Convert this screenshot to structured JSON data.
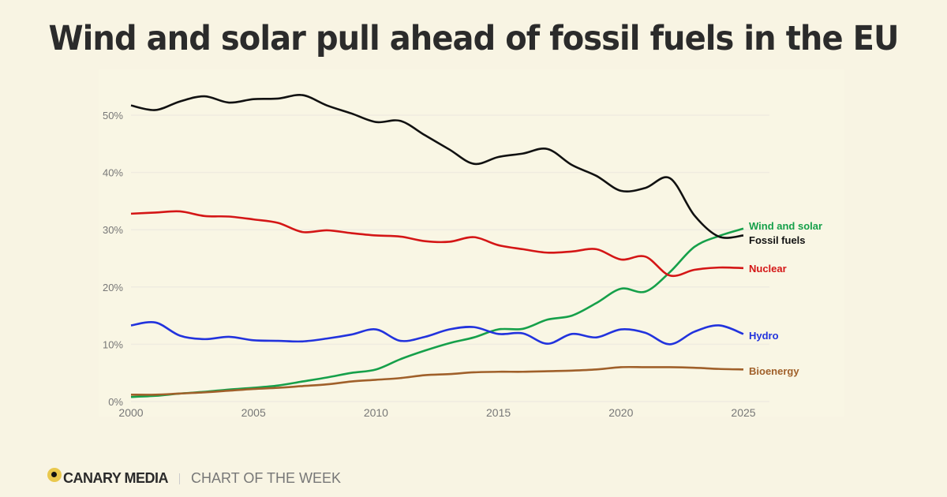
{
  "title": "Wind and solar pull ahead of fossil fuels in the EU",
  "footer": {
    "brand": "CANARY MEDIA",
    "tagline": "CHART OF THE WEEK"
  },
  "chart_data": {
    "type": "line",
    "title": "Wind and solar pull ahead of fossil fuels in the EU",
    "x": [
      2000,
      2001,
      2002,
      2003,
      2004,
      2005,
      2006,
      2007,
      2008,
      2009,
      2010,
      2011,
      2012,
      2013,
      2014,
      2015,
      2016,
      2017,
      2018,
      2019,
      2020,
      2021,
      2022,
      2023,
      2024,
      2025
    ],
    "xticks": [
      "2000",
      "2005",
      "2010",
      "2015",
      "2020",
      "2025"
    ],
    "yticks": [
      "0%",
      "10%",
      "20%",
      "30%",
      "40%",
      "50%"
    ],
    "ylim": [
      0,
      55
    ],
    "xlim": [
      2000,
      2026
    ],
    "grid": true,
    "legend": "direct-labels-right",
    "series": [
      {
        "name": "Wind and solar",
        "color": "#16a04a",
        "values": [
          0.8,
          1.0,
          1.4,
          1.7,
          2.1,
          2.4,
          2.8,
          3.5,
          4.2,
          5.0,
          5.6,
          7.4,
          8.9,
          10.2,
          11.2,
          12.6,
          12.7,
          14.3,
          15.0,
          17.2,
          19.7,
          19.2,
          22.6,
          27.0,
          28.9,
          30.2
        ]
      },
      {
        "name": "Fossil fuels",
        "color": "#111111",
        "values": [
          51.7,
          50.9,
          52.4,
          53.3,
          52.2,
          52.8,
          52.9,
          53.5,
          51.7,
          50.3,
          48.8,
          49.0,
          46.5,
          44.0,
          41.5,
          42.7,
          43.3,
          44.1,
          41.3,
          39.4,
          36.8,
          37.3,
          39.0,
          32.5,
          28.8,
          29.0
        ]
      },
      {
        "name": "Nuclear",
        "color": "#d41616",
        "values": [
          32.8,
          33.0,
          33.2,
          32.4,
          32.3,
          31.8,
          31.2,
          29.6,
          29.9,
          29.4,
          29.0,
          28.8,
          28.0,
          27.9,
          28.7,
          27.3,
          26.6,
          26.0,
          26.2,
          26.6,
          24.8,
          25.3,
          22.0,
          23.0,
          23.4,
          23.3
        ]
      },
      {
        "name": "Hydro",
        "color": "#2233dd",
        "values": [
          13.3,
          13.8,
          11.5,
          10.9,
          11.3,
          10.7,
          10.6,
          10.5,
          11.0,
          11.7,
          12.6,
          10.6,
          11.3,
          12.6,
          13.0,
          11.8,
          11.9,
          10.1,
          11.8,
          11.2,
          12.6,
          12.0,
          10.0,
          12.2,
          13.3,
          11.8
        ]
      },
      {
        "name": "Bioenergy",
        "color": "#a0602a",
        "values": [
          1.2,
          1.2,
          1.4,
          1.6,
          1.9,
          2.2,
          2.4,
          2.7,
          3.0,
          3.5,
          3.8,
          4.1,
          4.6,
          4.8,
          5.1,
          5.2,
          5.2,
          5.3,
          5.4,
          5.6,
          6.0,
          6.0,
          6.0,
          5.9,
          5.7,
          5.6
        ]
      }
    ]
  }
}
